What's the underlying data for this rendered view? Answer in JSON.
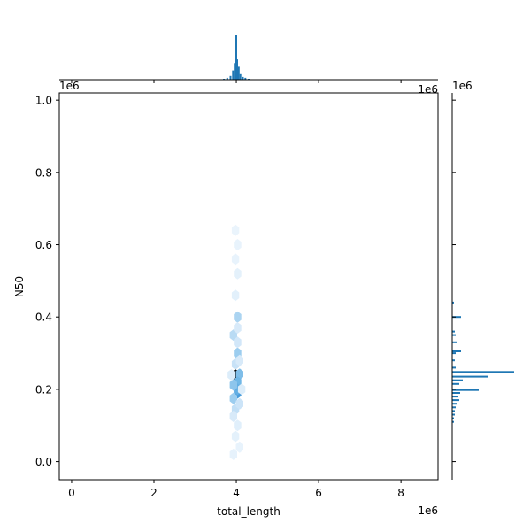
{
  "chart_data": {
    "type": "hexbin",
    "xlabel": "total_length",
    "ylabel": "N50",
    "x_offset_label": "1e6",
    "y_offset_label": "1e6",
    "top_offset_label": "1e6",
    "right_offset_label": "1e6",
    "xlim": [
      -0.3,
      8.9
    ],
    "ylim": [
      -0.05,
      1.02
    ],
    "x_ticks": [
      "0",
      "2",
      "4",
      "6",
      "8"
    ],
    "y_ticks": [
      "0.0",
      "0.2",
      "0.4",
      "0.6",
      "0.8",
      "1.0"
    ],
    "color": "#1f77b4",
    "hexbins": [
      {
        "x": 3.98,
        "y": 0.24,
        "density": 1.0
      },
      {
        "x": 4.08,
        "y": 0.242,
        "density": 0.45
      },
      {
        "x": 4.03,
        "y": 0.22,
        "density": 0.5
      },
      {
        "x": 4.03,
        "y": 0.19,
        "density": 0.65
      },
      {
        "x": 4.03,
        "y": 0.2,
        "density": 0.55
      },
      {
        "x": 3.93,
        "y": 0.212,
        "density": 0.4
      },
      {
        "x": 4.03,
        "y": 0.3,
        "density": 0.35
      },
      {
        "x": 4.03,
        "y": 0.4,
        "density": 0.3
      },
      {
        "x": 3.93,
        "y": 0.35,
        "density": 0.25
      },
      {
        "x": 4.03,
        "y": 0.33,
        "density": 0.15
      },
      {
        "x": 3.93,
        "y": 0.175,
        "density": 0.35
      },
      {
        "x": 3.98,
        "y": 0.27,
        "density": 0.2
      },
      {
        "x": 4.08,
        "y": 0.28,
        "density": 0.12
      },
      {
        "x": 3.98,
        "y": 0.145,
        "density": 0.22
      },
      {
        "x": 4.08,
        "y": 0.16,
        "density": 0.18
      },
      {
        "x": 3.93,
        "y": 0.125,
        "density": 0.12
      },
      {
        "x": 4.03,
        "y": 0.1,
        "density": 0.08
      },
      {
        "x": 3.98,
        "y": 0.07,
        "density": 0.06
      },
      {
        "x": 4.03,
        "y": 0.37,
        "density": 0.12
      },
      {
        "x": 3.98,
        "y": 0.46,
        "density": 0.07
      },
      {
        "x": 4.03,
        "y": 0.52,
        "density": 0.06
      },
      {
        "x": 3.98,
        "y": 0.56,
        "density": 0.04
      },
      {
        "x": 4.03,
        "y": 0.6,
        "density": 0.04
      },
      {
        "x": 3.98,
        "y": 0.64,
        "density": 0.03
      },
      {
        "x": 3.93,
        "y": 0.02,
        "density": 0.05
      },
      {
        "x": 4.08,
        "y": 0.04,
        "density": 0.04
      },
      {
        "x": 4.13,
        "y": 0.2,
        "density": 0.1
      },
      {
        "x": 3.88,
        "y": 0.24,
        "density": 0.1
      }
    ],
    "top_histogram": [
      {
        "x": 3.7,
        "count": 1
      },
      {
        "x": 3.78,
        "count": 2
      },
      {
        "x": 3.86,
        "count": 4
      },
      {
        "x": 3.92,
        "count": 10
      },
      {
        "x": 3.96,
        "count": 18
      },
      {
        "x": 4.0,
        "count": 48
      },
      {
        "x": 4.02,
        "count": 22
      },
      {
        "x": 4.06,
        "count": 14
      },
      {
        "x": 4.1,
        "count": 6
      },
      {
        "x": 4.16,
        "count": 3
      },
      {
        "x": 4.22,
        "count": 2
      },
      {
        "x": 4.3,
        "count": 1
      }
    ],
    "right_histogram": [
      {
        "y": 0.44,
        "count": 2
      },
      {
        "y": 0.4,
        "count": 10
      },
      {
        "y": 0.36,
        "count": 3
      },
      {
        "y": 0.35,
        "count": 4
      },
      {
        "y": 0.33,
        "count": 5
      },
      {
        "y": 0.305,
        "count": 10
      },
      {
        "y": 0.3,
        "count": 4
      },
      {
        "y": 0.28,
        "count": 3
      },
      {
        "y": 0.26,
        "count": 4
      },
      {
        "y": 0.248,
        "count": 70
      },
      {
        "y": 0.235,
        "count": 40
      },
      {
        "y": 0.225,
        "count": 12
      },
      {
        "y": 0.215,
        "count": 8
      },
      {
        "y": 0.198,
        "count": 30
      },
      {
        "y": 0.19,
        "count": 9
      },
      {
        "y": 0.18,
        "count": 6
      },
      {
        "y": 0.17,
        "count": 8
      },
      {
        "y": 0.16,
        "count": 5
      },
      {
        "y": 0.15,
        "count": 4
      },
      {
        "y": 0.14,
        "count": 3
      },
      {
        "y": 0.13,
        "count": 3
      },
      {
        "y": 0.12,
        "count": 2
      },
      {
        "y": 0.11,
        "count": 2
      }
    ]
  }
}
